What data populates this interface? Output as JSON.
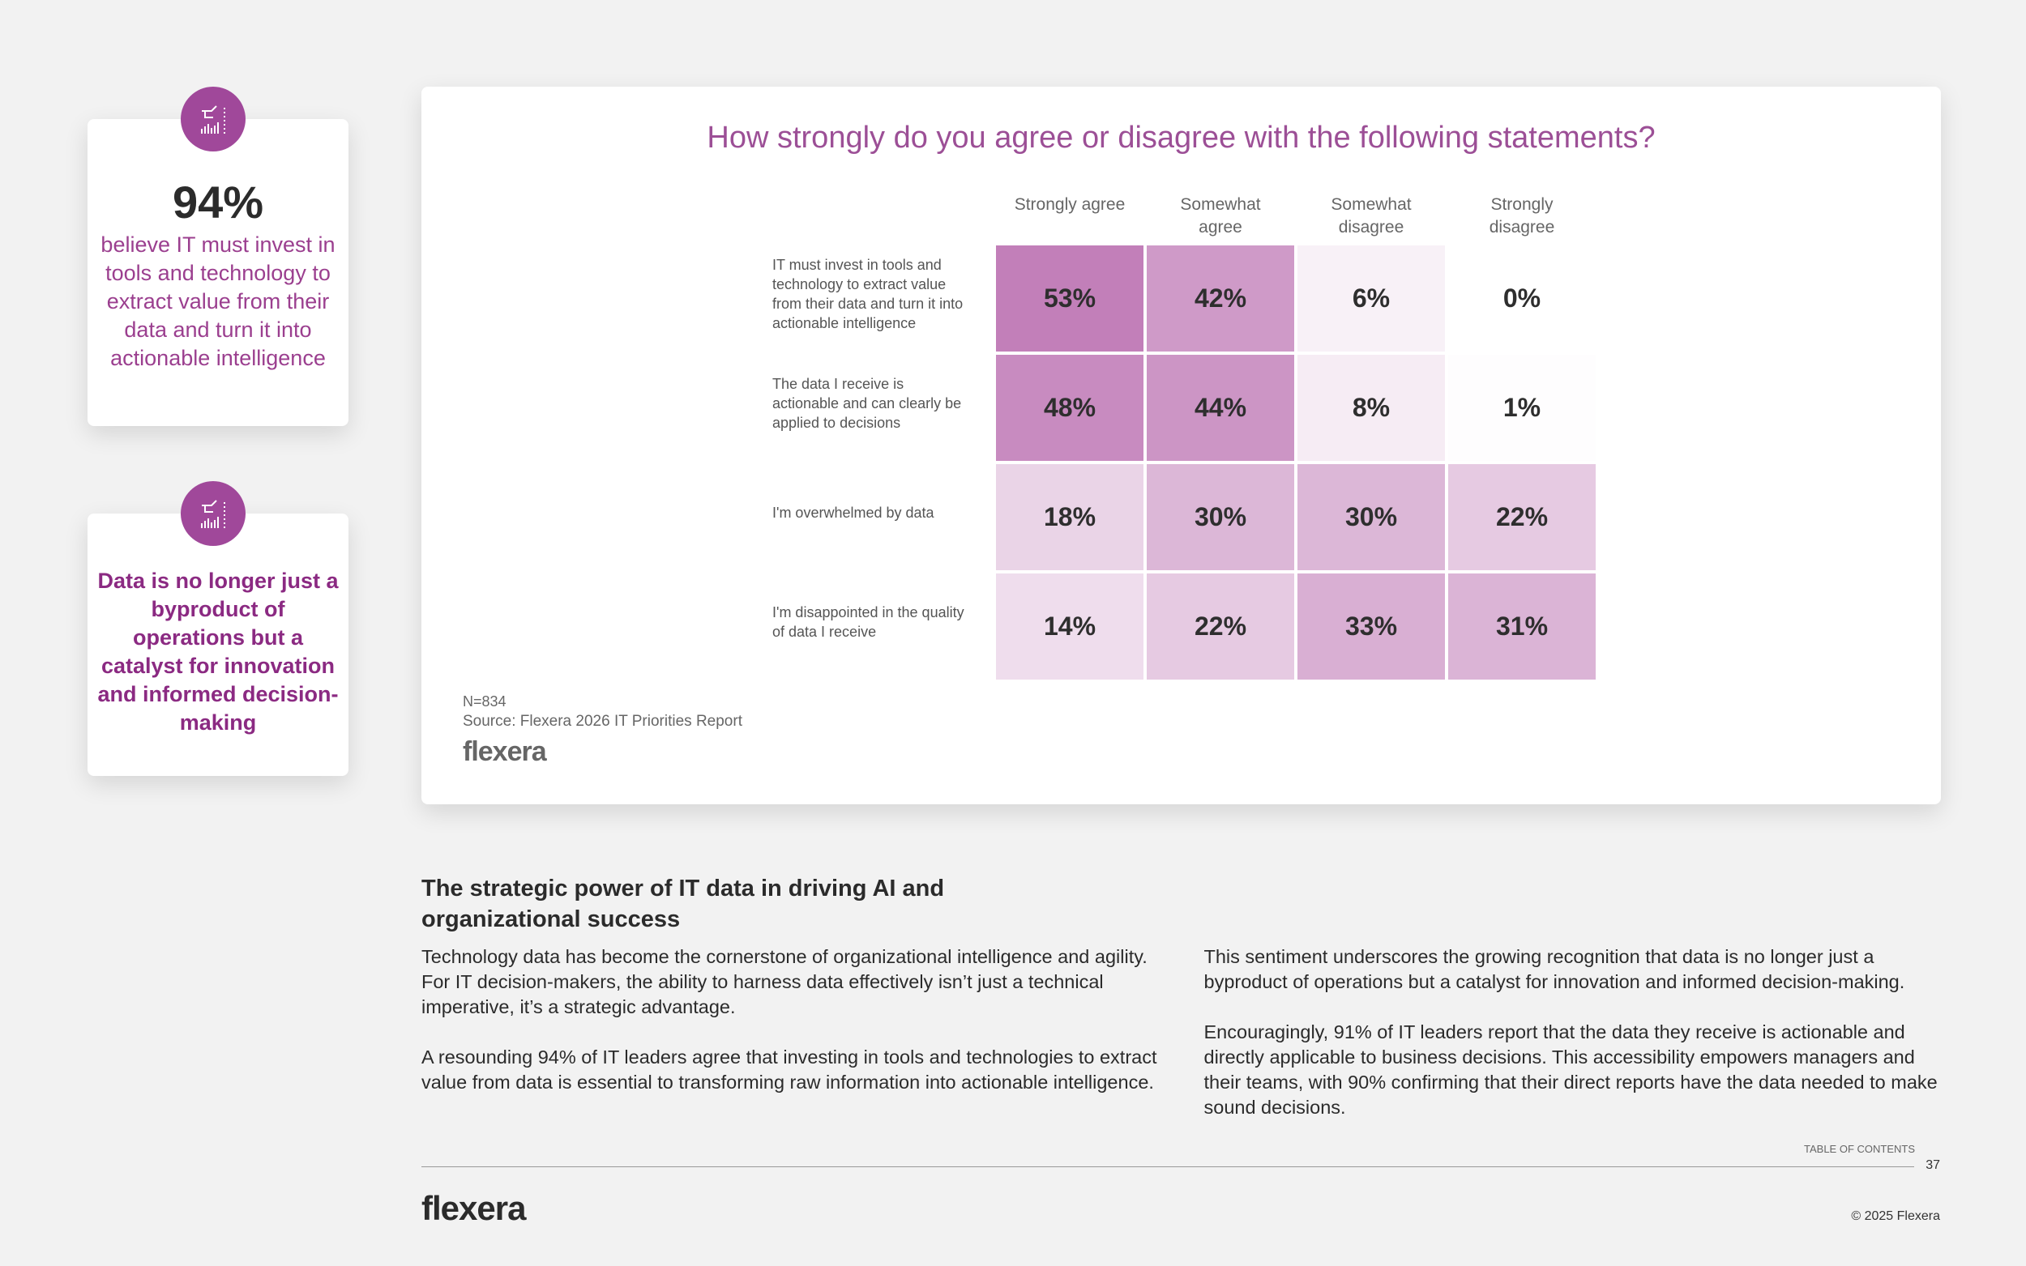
{
  "sidebar": {
    "stat": "94%",
    "stat_text": "believe IT must invest in tools and technology to extract value from their data and turn it into actionable intelligence",
    "quote": "Data is no longer just a byproduct of operations but a catalyst for innovation and informed decision-making"
  },
  "chart_data": {
    "type": "heatmap",
    "title": "How strongly do you agree or disagree with the following statements?",
    "columns": [
      "Strongly agree",
      "Somewhat agree",
      "Somewhat disagree",
      "Strongly disagree"
    ],
    "rows": [
      "IT must invest in tools and technology to extract value from their data and turn it into actionable intelligence",
      "The data I receive is actionable and can clearly be applied to decisions",
      "I'm overwhelmed by data",
      "I'm disappointed in the quality of data I receive"
    ],
    "values": [
      [
        53,
        42,
        6,
        0
      ],
      [
        48,
        44,
        8,
        1
      ],
      [
        18,
        30,
        30,
        22
      ],
      [
        14,
        22,
        33,
        31
      ]
    ],
    "value_labels": [
      [
        "53%",
        "42%",
        "6%",
        "0%"
      ],
      [
        "48%",
        "44%",
        "8%",
        "1%"
      ],
      [
        "18%",
        "30%",
        "30%",
        "22%"
      ],
      [
        "14%",
        "22%",
        "33%",
        "31%"
      ]
    ],
    "colors": [
      "#ffffff",
      "#c27fb9"
    ],
    "note": "N=834",
    "source": "Source: Flexera 2026 IT Priorities Report",
    "logo": "flexera"
  },
  "article": {
    "heading": "The strategic power of IT data in driving AI and organizational success",
    "paragraphs": [
      "Technology data has become the cornerstone of organizational intelligence and agility. For IT decision-makers, the ability to harness data effectively isn’t just a technical imperative, it’s a strategic advantage.",
      "A resounding 94% of IT leaders agree that investing in tools and technologies to extract value from data is essential to transforming raw information into actionable intelligence. This sentiment underscores the growing recognition that data is no longer just a byproduct of operations but a catalyst for innovation and informed decision-making.",
      "Encouragingly, 91% of IT leaders report that the data they receive is actionable and directly applicable to business decisions. This accessibility empowers managers and their teams, with 90% confirming that their direct reports have the data needed to make sound decisions."
    ]
  },
  "footer": {
    "toc": "TABLE OF CONTENTS",
    "page": "37",
    "logo": "flexera",
    "copyright": "© 2025 Flexera"
  }
}
